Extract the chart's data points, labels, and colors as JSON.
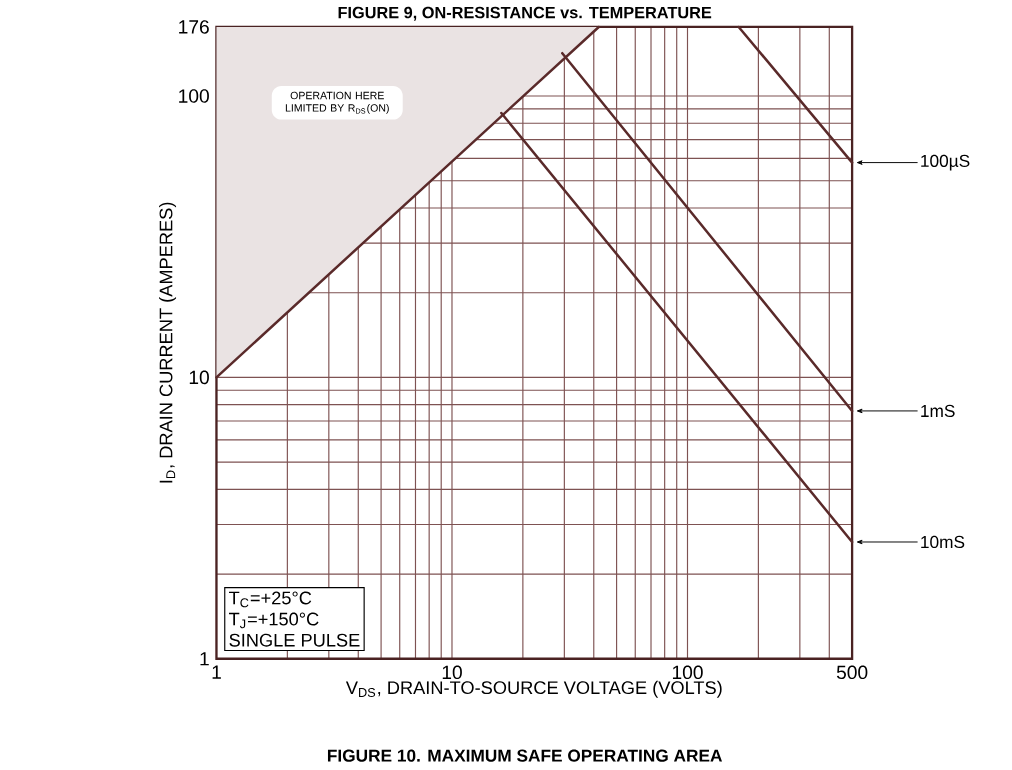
{
  "chart_data": {
    "type": "line",
    "title": "FIGURE 10. MAXIMUM SAFE OPERATING AREA",
    "xlabel": "V$_{DS}$, DRAIN-TO-SOURCE VOLTAGE (VOLTS)",
    "ylabel": "I$_{D}$, DRAIN CURRENT (AMPERES)",
    "log": "xy",
    "grid": true,
    "xlim": [
      1,
      500
    ],
    "ylim": [
      1,
      176
    ],
    "xticks": [
      1,
      10,
      100,
      500
    ],
    "yticks": [
      1,
      10,
      100,
      176
    ],
    "series": [
      {
        "name": "100µS",
        "color": "#5a2a2a",
        "x": [
          165,
          500
        ],
        "values": [
          176,
          58
        ]
      },
      {
        "name": "1mS",
        "color": "#5a2a2a",
        "x": [
          29.4,
          500
        ],
        "values": [
          142,
          7.6
        ]
      },
      {
        "name": "10mS",
        "color": "#5a2a2a",
        "x": [
          16.2,
          500
        ],
        "values": [
          87,
          2.6
        ]
      },
      {
        "color": "#5a2a2a",
        "x": [
          1,
          42
        ],
        "values": [
          10,
          176
        ],
        "lower": [
          10,
          176
        ],
        "upper": [
          176,
          176
        ]
      }
    ],
    "annotations": [
      "FIGURE 9, ON-RESISTANCE vs. TEMPERATURE",
      "OPERATION HERE LIMITED BY R$_{DS}$(ON)",
      "T$_{C}$=+25°C",
      "T$_{J}$=+150°C",
      "SINGLE PULSE"
    ]
  }
}
